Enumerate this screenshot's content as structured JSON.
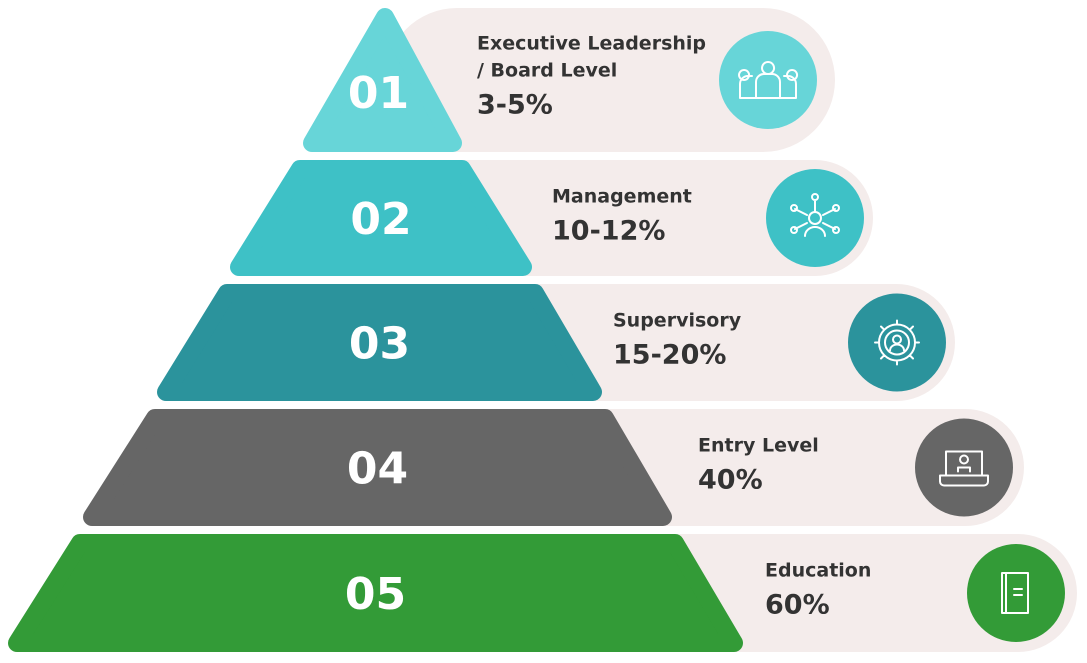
{
  "tiers": [
    {
      "number": "01",
      "title": [
        "Executive Leadership",
        "/ Board Level"
      ],
      "share": "3-5%"
    },
    {
      "number": "02",
      "title": [
        "Management"
      ],
      "share": "10-12%"
    },
    {
      "number": "03",
      "title": [
        "Supervisory"
      ],
      "share": "15-20%"
    },
    {
      "number": "04",
      "title": [
        "Entry Level"
      ],
      "share": "40%"
    },
    {
      "number": "05",
      "title": [
        "Education"
      ],
      "share": "60%"
    }
  ]
}
